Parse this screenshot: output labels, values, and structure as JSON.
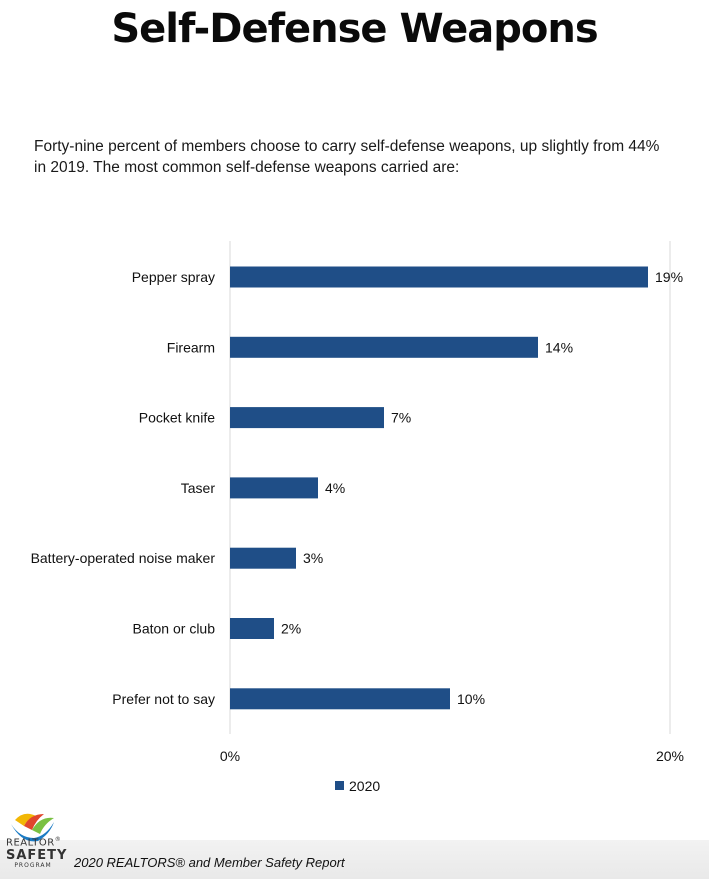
{
  "title": "Self-Defense Weapons",
  "subtitle": "Forty-nine percent of members choose to carry self-defense weapons, up slightly from 44% in 2019. The most common self-defense weapons carried are:",
  "chart_data": {
    "type": "bar",
    "orientation": "horizontal",
    "categories": [
      "Pepper spray",
      "Firearm",
      "Pocket knife",
      "Taser",
      "Battery-operated noise maker",
      "Baton or club",
      "Prefer not to say"
    ],
    "series": [
      {
        "name": "2020",
        "values": [
          19,
          14,
          7,
          4,
          3,
          2,
          10
        ],
        "color": "#1f4e87"
      }
    ],
    "data_labels": [
      "19%",
      "14%",
      "7%",
      "4%",
      "3%",
      "2%",
      "10%"
    ],
    "xlim": [
      0,
      20
    ],
    "x_ticks": [
      "0%",
      "20%"
    ],
    "legend": "bottom-center",
    "grid": true
  },
  "logo": {
    "line1": "REALTOR",
    "mark": "®",
    "line2": "SAFETY",
    "line3": "PROGRAM"
  },
  "footer": {
    "report": "2020 REALTORS® and Member Safety Report"
  }
}
